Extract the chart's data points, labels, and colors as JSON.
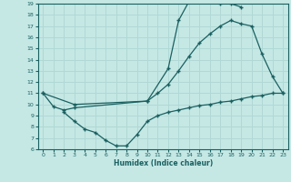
{
  "xlabel": "Humidex (Indice chaleur)",
  "xlim": [
    -0.5,
    23.5
  ],
  "ylim": [
    6,
    19
  ],
  "yticks": [
    6,
    7,
    8,
    9,
    10,
    11,
    12,
    13,
    14,
    15,
    16,
    17,
    18,
    19
  ],
  "xticks": [
    0,
    1,
    2,
    3,
    4,
    5,
    6,
    7,
    8,
    9,
    10,
    11,
    12,
    13,
    14,
    15,
    16,
    17,
    18,
    19,
    20,
    21,
    22,
    23
  ],
  "bg_color": "#c5e8e5",
  "line_color": "#1a6060",
  "grid_color": "#b0d8d4",
  "line1_x": [
    0,
    1,
    2,
    3,
    10,
    12,
    13,
    14,
    15,
    16,
    17,
    18,
    19
  ],
  "line1_y": [
    11,
    9.8,
    9.5,
    9.7,
    10.3,
    13.2,
    17.5,
    19.2,
    19.2,
    19.2,
    19.0,
    19.0,
    18.7
  ],
  "line2_x": [
    0,
    3,
    10,
    11,
    12,
    13,
    14,
    15,
    16,
    17,
    18,
    19,
    20,
    21,
    22,
    23
  ],
  "line2_y": [
    11,
    10.0,
    10.3,
    11.0,
    11.8,
    13.0,
    14.3,
    15.5,
    16.3,
    17.0,
    17.5,
    17.2,
    17.0,
    14.5,
    12.5,
    11.0
  ],
  "line3_x": [
    2,
    3,
    4,
    5,
    6,
    7,
    8,
    9,
    10,
    11,
    12,
    13,
    14,
    15,
    16,
    17,
    18,
    19,
    20,
    21,
    22,
    23
  ],
  "line3_y": [
    9.3,
    8.5,
    7.8,
    7.5,
    6.8,
    6.3,
    6.3,
    7.3,
    8.5,
    9.0,
    9.3,
    9.5,
    9.7,
    9.9,
    10.0,
    10.2,
    10.3,
    10.5,
    10.7,
    10.8,
    11.0,
    11.0
  ]
}
